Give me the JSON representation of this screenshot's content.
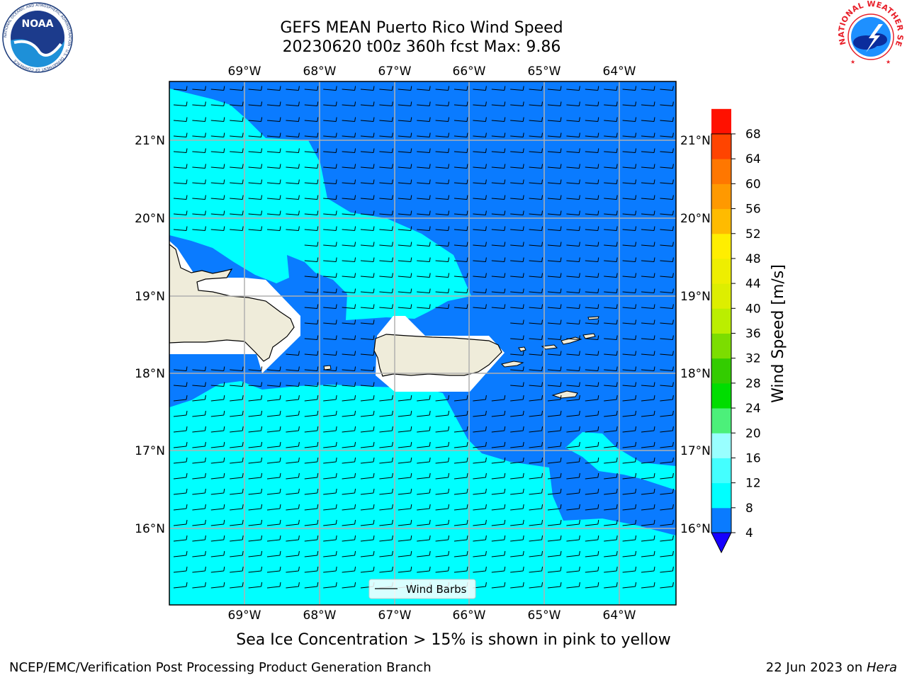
{
  "header": {
    "title_line1": "GEFS MEAN Puerto Rico Wind Speed",
    "title_line2": "20230620 t00z 360h fcst   Max: 9.86"
  },
  "logos": {
    "noaa_text": "NOAA",
    "noaa_ring_text": "NATIONAL OCEANIC AND ATMOSPHERIC ADMINISTRATION · U.S. DEPARTMENT OF COMMERCE",
    "nws_ring_text": "NATIONAL WEATHER SERVICE"
  },
  "map": {
    "lon_labels": [
      "69°W",
      "68°W",
      "67°W",
      "66°W",
      "65°W",
      "64°W"
    ],
    "lat_labels": [
      "21°N",
      "20°N",
      "19°N",
      "18°N",
      "17°N",
      "16°N"
    ],
    "legend_label": "Wind Barbs",
    "colors": {
      "ocean_low": "#0a7bff",
      "ocean_mid": "#00ffff",
      "land": "#efecda",
      "grid": "#b0b0b0"
    }
  },
  "colorbar": {
    "label": "Wind Speed [m/s]",
    "ticks": [
      "4",
      "8",
      "12",
      "16",
      "20",
      "24",
      "28",
      "32",
      "36",
      "40",
      "44",
      "48",
      "52",
      "56",
      "60",
      "64",
      "68"
    ],
    "colors": [
      "#0a7bff",
      "#00ffff",
      "#44ffff",
      "#99ffff",
      "#4cf07a",
      "#00dd00",
      "#33cc00",
      "#7cdd00",
      "#bbee00",
      "#ddee00",
      "#eeee00",
      "#ffee00",
      "#ffbb00",
      "#ff9900",
      "#ff7700",
      "#ff4400",
      "#ff1100"
    ],
    "extend_color": "#1600ff"
  },
  "note": "Sea Ice Concentration > 15% is shown in pink to yellow",
  "footer": {
    "left": "NCEP/EMC/Verification Post Processing Product Generation Branch",
    "right_prefix": "22 Jun 2023 on ",
    "right_host": "Hera"
  }
}
